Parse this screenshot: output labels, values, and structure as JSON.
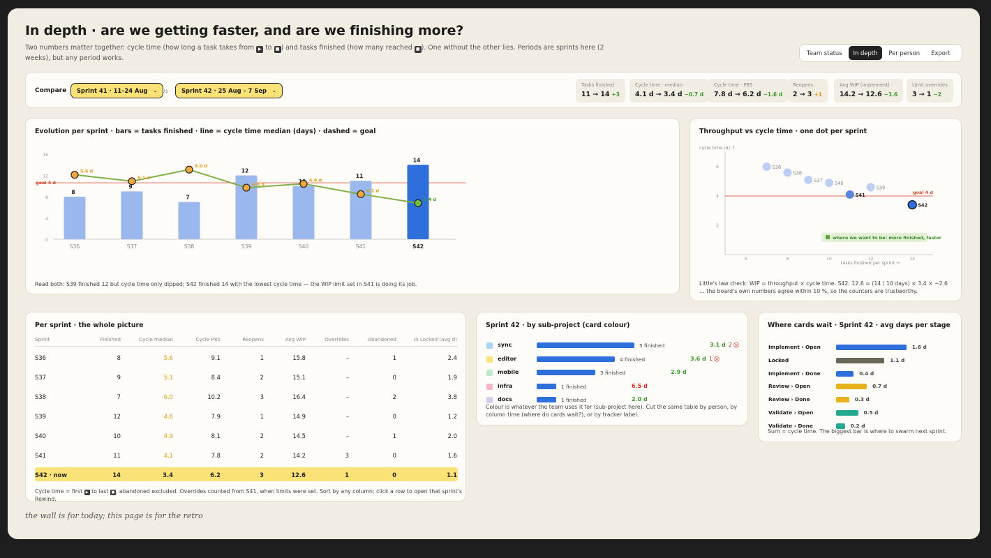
{
  "header": {
    "title": "In depth · are we getting faster, and are we finishing more?",
    "subtitle_a": "Two numbers matter together: cycle time (how long a task takes from",
    "subtitle_b": "to",
    "subtitle_c": ") and tasks finished (how many reached",
    "subtitle_d": "). One without the other lies. Periods are sprints here (2 weeks), but any period works."
  },
  "tabs": [
    "Team status",
    "In depth",
    "Per person",
    "Export"
  ],
  "compare": {
    "label": "Compare",
    "left": "Sprint 41 · 11–24 Aug",
    "vs": "vs",
    "right": "Sprint 42 · 25 Aug – 7 Sep",
    "stats": [
      {
        "label": "Tasks finished",
        "value": "11 → 14",
        "delta": "+3",
        "color": "#3d9a2a"
      },
      {
        "label": "Cycle time · median",
        "value": "4.1 d → 3.4 d",
        "delta": "−0.7 d",
        "color": "#3d9a2a"
      },
      {
        "label": "Cycle time · P85",
        "value": "7.8 d → 6.2 d",
        "delta": "−1.6 d",
        "color": "#3d9a2a"
      },
      {
        "label": "Reopens",
        "value": "2 → 3",
        "delta": "+1",
        "color": "#e69a18"
      },
      {
        "label": "Avg WIP (implement)",
        "value": "14.2 → 12.6",
        "delta": "−1.6",
        "color": "#3d9a2a"
      },
      {
        "label": "Limit overrides",
        "value": "3 → 1",
        "delta": "−2",
        "color": "#3d9a2a"
      }
    ]
  },
  "evolution": {
    "title": "Evolution per sprint · bars = tasks finished · line = cycle time median (days) · dashed = goal",
    "note": "Read both: S39 finished 12 but cycle time only dipped; S42 finished 14 with the lowest cycle time — the WIP limit set in S41 is doing its job."
  },
  "throughput": {
    "title": "Throughput vs cycle time · one dot per sprint",
    "callout": "where we want to be: more finished, faster",
    "note": "Little's law check: WIP ≈ throughput × cycle time. S42: 12.6 ≈ (14 / 10 days) × 3.4 × ~2.6 … the board's own numbers agree within 10 %, so the counters are trustworthy."
  },
  "chart_data": [
    {
      "type": "bar",
      "categories": [
        "S36",
        "S37",
        "S38",
        "S39",
        "S40",
        "S41",
        "S42"
      ],
      "series": [
        {
          "name": "tasks finished",
          "values": [
            8,
            9,
            7,
            12,
            10,
            11,
            14
          ]
        },
        {
          "name": "cycle time median (days)",
          "values": [
            5.6,
            5.1,
            6.0,
            4.6,
            4.9,
            4.1,
            3.4
          ]
        }
      ],
      "point_labels": [
        "5.6 d",
        "5.1 d",
        "6.0 d",
        "4.6 d",
        "4.9 d",
        "4.1 d",
        "3.4 d"
      ],
      "goal": 4,
      "goal_label": "goal 4 d",
      "yticks": [
        0,
        4,
        8,
        12,
        16
      ],
      "ylim": [
        0,
        16
      ]
    },
    {
      "type": "scatter",
      "xlabel": "tasks finished per sprint →",
      "ylabel": "cycle time (d) ↑",
      "xticks": [
        6,
        8,
        10,
        12,
        14
      ],
      "yticks": [
        2,
        4,
        6
      ],
      "xlim": [
        5,
        15
      ],
      "ylim": [
        0,
        7
      ],
      "goal": 4,
      "goal_label": "goal 4 d",
      "points": [
        {
          "label": "S38",
          "x": 7,
          "y": 6.0
        },
        {
          "label": "S36",
          "x": 8,
          "y": 5.6
        },
        {
          "label": "S37",
          "x": 9,
          "y": 5.1
        },
        {
          "label": "S40",
          "x": 10,
          "y": 4.9
        },
        {
          "label": "S41",
          "x": 11,
          "y": 4.1
        },
        {
          "label": "S39",
          "x": 12,
          "y": 4.6
        },
        {
          "label": "S42",
          "x": 14,
          "y": 3.4
        }
      ]
    }
  ],
  "table": {
    "title": "Per sprint · the whole picture",
    "headers": [
      "Sprint",
      "Finished",
      "Cycle median",
      "Cycle P85",
      "Reopens",
      "Avg WIP",
      "Overrides",
      "Abandoned",
      "In Locked (avg d)"
    ],
    "rows": [
      [
        "S36",
        "8",
        "5.6",
        "9.1",
        "1",
        "15.8",
        "–",
        "1",
        "2.4"
      ],
      [
        "S37",
        "9",
        "5.1",
        "8.4",
        "2",
        "15.1",
        "–",
        "0",
        "1.9"
      ],
      [
        "S38",
        "7",
        "6.0",
        "10.2",
        "3",
        "16.4",
        "–",
        "2",
        "3.8"
      ],
      [
        "S39",
        "12",
        "4.6",
        "7.9",
        "1",
        "14.9",
        "–",
        "0",
        "1.2"
      ],
      [
        "S40",
        "10",
        "4.9",
        "8.1",
        "2",
        "14.5",
        "–",
        "1",
        "2.0"
      ],
      [
        "S41",
        "11",
        "4.1",
        "7.8",
        "2",
        "14.2",
        "3",
        "0",
        "1.6"
      ],
      [
        "S42 · now",
        "14",
        "3.4",
        "6.2",
        "3",
        "12.6",
        "1",
        "0",
        "1.1"
      ]
    ],
    "note_a": "Cycle time = first",
    "note_b": "to last",
    "note_c": ", abandoned excluded. Overrides counted from S41, when limits were set. Sort by any column; click a row to open that sprint's Rewind."
  },
  "subprojects": {
    "title": "Sprint 42 · by sub-project (card colour)",
    "items": [
      {
        "name": "sync",
        "color": "#a9d4f2",
        "finished": 5,
        "label": "5 finished",
        "cycle": "3.1 d",
        "cycle_color": "#3d9a2a",
        "extra": "2 ⛒"
      },
      {
        "name": "editor",
        "color": "#fbe276",
        "finished": 4,
        "label": "4 finished",
        "cycle": "3.6 d",
        "cycle_color": "#3d9a2a",
        "extra": "1 ⛒"
      },
      {
        "name": "mobile",
        "color": "#bde8cc",
        "finished": 3,
        "label": "3 finished",
        "cycle": "2.9 d",
        "cycle_color": "#3d9a2a",
        "extra": ""
      },
      {
        "name": "infra",
        "color": "#f6b7c8",
        "finished": 1,
        "label": "1 finished",
        "cycle": "6.5 d",
        "cycle_color": "#d42a1a",
        "extra": ""
      },
      {
        "name": "docs",
        "color": "#d8cbf0",
        "finished": 1,
        "label": "1 finished",
        "cycle": "2.0 d",
        "cycle_color": "#3d9a2a",
        "extra": ""
      }
    ],
    "note": "Colour is whatever the team uses it for (sub-project here). Cut the same table by person, by column time (where do cards wait?), or by tracker label."
  },
  "stages": {
    "title": "Where cards wait · Sprint 42 · avg days per stage",
    "items": [
      {
        "name": "Implement › Open",
        "days": 1.6,
        "label": "1.6 d",
        "color": "#2f6fdc"
      },
      {
        "name": "Locked",
        "days": 1.1,
        "label": "1.1 d",
        "color": "#6b665a"
      },
      {
        "name": "Implement › Done",
        "days": 0.4,
        "label": "0.4 d",
        "color": "#2f6fdc"
      },
      {
        "name": "Review › Open",
        "days": 0.7,
        "label": "0.7 d",
        "color": "#e8b21c"
      },
      {
        "name": "Review › Done",
        "days": 0.3,
        "label": "0.3 d",
        "color": "#e8b21c"
      },
      {
        "name": "Validate › Open",
        "days": 0.5,
        "label": "0.5 d",
        "color": "#22a98f"
      },
      {
        "name": "Validate › Done",
        "days": 0.2,
        "label": "0.2 d",
        "color": "#22a98f"
      }
    ],
    "note": "Sum = cycle time. The biggest bar is where to swarm next sprint."
  },
  "footer": "the wall is for today; this page is for the retro"
}
